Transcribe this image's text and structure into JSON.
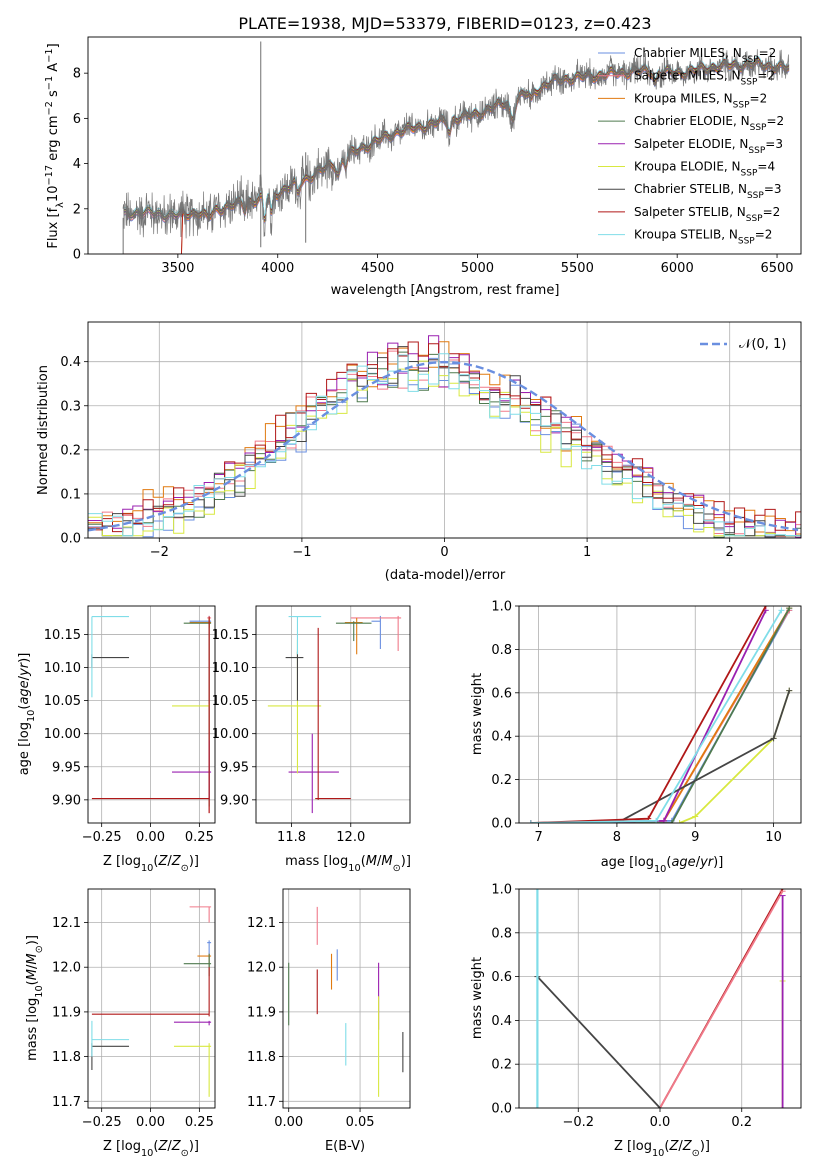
{
  "figure": {
    "title": "PLATE=1938, MJD=53379, FIBERID=0123, z=0.423"
  },
  "colors": {
    "Chabrier MILES": "#6a8fe0",
    "Salpeter MILES": "#f07a8a",
    "Kroupa MILES": "#e07a10",
    "Chabrier ELODIE": "#4f7a4f",
    "Salpeter ELODIE": "#9a20b0",
    "Kroupa ELODIE": "#d8e840",
    "Chabrier STELIB": "#454545",
    "Salpeter STELIB": "#b01818",
    "Kroupa STELIB": "#80dde8",
    "data": "#707070",
    "normal": "#6a8fe0",
    "grid": "#b0b0b0"
  },
  "chart_data": [
    {
      "type": "line",
      "title": "PLATE=1938, MJD=53379, FIBERID=0123, z=0.423",
      "xlabel": "wavelength [Angstrom, rest frame]",
      "ylabel": "Flux [fλ10⁻¹⁷ erg cm⁻² s⁻¹ A⁻¹]",
      "xlim": [
        3050,
        6620
      ],
      "ylim": [
        0,
        9.6
      ],
      "xticks": [
        3500,
        4000,
        4500,
        5000,
        5500,
        6000,
        6500
      ],
      "yticks": [
        0,
        2,
        4,
        6,
        8
      ],
      "grid": false,
      "legend_position": "top-right",
      "legend": [
        {
          "label": "Chabrier MILES, N",
          "sub": "SSP",
          "suffix": "=2"
        },
        {
          "label": "Salpeter MILES, N",
          "sub": "SSP",
          "suffix": "=2"
        },
        {
          "label": "Kroupa MILES, N",
          "sub": "SSP",
          "suffix": "=2"
        },
        {
          "label": "Chabrier ELODIE, N",
          "sub": "SSP",
          "suffix": "=2"
        },
        {
          "label": "Salpeter ELODIE, N",
          "sub": "SSP",
          "suffix": "=3"
        },
        {
          "label": "Kroupa ELODIE, N",
          "sub": "SSP",
          "suffix": "=4"
        },
        {
          "label": "Chabrier STELIB, N",
          "sub": "SSP",
          "suffix": "=3"
        },
        {
          "label": "Salpeter STELIB, N",
          "sub": "SSP",
          "suffix": "=2"
        },
        {
          "label": "Kroupa STELIB, N",
          "sub": "SSP",
          "suffix": "=2"
        }
      ],
      "continuum": {
        "x": [
          3220,
          3300,
          3500,
          3700,
          3900,
          4000,
          4200,
          4400,
          4600,
          4800,
          5000,
          5200,
          5400,
          5600,
          5800,
          6000,
          6200,
          6400,
          6560
        ],
        "y": [
          1.7,
          1.85,
          1.7,
          2.0,
          2.4,
          2.7,
          3.6,
          4.6,
          5.4,
          5.8,
          6.2,
          6.9,
          7.7,
          7.9,
          8.1,
          8.0,
          8.3,
          8.4,
          8.2
        ]
      }
    },
    {
      "type": "histogram",
      "xlabel": "(data-model)/error",
      "ylabel": "Normed distribution",
      "xlim": [
        -2.5,
        2.5
      ],
      "ylim": [
        0,
        0.49
      ],
      "xticks": [
        -2,
        -1,
        0,
        1,
        2
      ],
      "yticks": [
        0.0,
        0.1,
        0.2,
        0.3,
        0.4
      ],
      "grid": true,
      "legend_position": "top-right",
      "reference_curve": "N(0,1)",
      "bin_width": 0.1,
      "bin_start": -2.5,
      "series": [
        {
          "values": [
            0.03,
            0.02,
            0.03,
            0.03,
            0.04,
            0.05,
            0.06,
            0.05,
            0.06,
            0.07,
            0.08,
            0.1,
            0.12,
            0.14,
            0.12,
            0.18,
            0.2,
            0.17,
            0.22,
            0.26,
            0.24,
            0.28,
            0.31,
            0.3,
            0.34,
            0.36,
            0.33,
            0.38,
            0.4,
            0.37,
            0.42,
            0.39,
            0.36,
            0.4,
            0.38,
            0.41,
            0.35,
            0.37,
            0.34,
            0.33,
            0.31,
            0.35,
            0.3,
            0.29,
            0.26,
            0.28,
            0.23,
            0.25,
            0.2,
            0.22,
            0.18,
            0.16,
            0.17,
            0.14,
            0.12,
            0.1,
            0.08,
            0.09,
            0.06,
            0.05,
            0.04,
            0.04,
            0.03,
            0.02,
            0.02,
            0.02,
            0.01,
            0.01,
            0.01,
            0.01
          ]
        },
        {
          "values": [
            0.02,
            0.03,
            0.02,
            0.04,
            0.04,
            0.05,
            0.05,
            0.06,
            0.07,
            0.08,
            0.09,
            0.11,
            0.11,
            0.15,
            0.15,
            0.17,
            0.19,
            0.2,
            0.23,
            0.23,
            0.27,
            0.29,
            0.29,
            0.33,
            0.35,
            0.35,
            0.37,
            0.39,
            0.36,
            0.41,
            0.37,
            0.4,
            0.38,
            0.42,
            0.36,
            0.39,
            0.38,
            0.36,
            0.32,
            0.34,
            0.3,
            0.32,
            0.3,
            0.27,
            0.29,
            0.25,
            0.24,
            0.22,
            0.21,
            0.19,
            0.18,
            0.17,
            0.15,
            0.13,
            0.13,
            0.1,
            0.09,
            0.08,
            0.07,
            0.06,
            0.05,
            0.04,
            0.03,
            0.03,
            0.02,
            0.02,
            0.02,
            0.01,
            0.01,
            0.01
          ]
        },
        {
          "values": [
            0.04,
            0.03,
            0.03,
            0.02,
            0.04,
            0.06,
            0.05,
            0.07,
            0.06,
            0.08,
            0.1,
            0.1,
            0.13,
            0.13,
            0.16,
            0.16,
            0.2,
            0.21,
            0.21,
            0.25,
            0.27,
            0.27,
            0.31,
            0.32,
            0.32,
            0.36,
            0.38,
            0.35,
            0.39,
            0.39,
            0.4,
            0.37,
            0.41,
            0.38,
            0.4,
            0.36,
            0.37,
            0.35,
            0.35,
            0.3,
            0.33,
            0.29,
            0.28,
            0.28,
            0.24,
            0.25,
            0.2,
            0.23,
            0.19,
            0.19,
            0.16,
            0.16,
            0.14,
            0.12,
            0.11,
            0.1,
            0.08,
            0.07,
            0.06,
            0.05,
            0.04,
            0.03,
            0.03,
            0.02,
            0.02,
            0.02,
            0.01,
            0.01,
            0.01,
            0.0
          ]
        }
      ]
    },
    {
      "type": "scatter",
      "xlabel": "Z [log10(Z/Z⊙)]",
      "ylabel": "age  [log10(age/yr)]",
      "xlim": [
        -0.32,
        0.33
      ],
      "ylim": [
        9.865,
        10.193
      ],
      "xticks": [
        -0.25,
        0.0,
        0.25
      ],
      "yticks": [
        9.9,
        9.95,
        10.0,
        10.05,
        10.1,
        10.15
      ],
      "grid": true
    },
    {
      "type": "scatter",
      "xlabel": "mass [log10(M/M⊙)]",
      "ylabel": "",
      "xlim": [
        11.68,
        12.2
      ],
      "ylim": [
        9.865,
        10.193
      ],
      "xticks": [
        11.8,
        12.0
      ],
      "yticks": [
        9.9,
        9.95,
        10.0,
        10.05,
        10.1,
        10.15
      ],
      "grid": true
    },
    {
      "type": "line",
      "xlabel": "age  [log10(age/yr)]",
      "ylabel": "mass weight",
      "xlim": [
        6.75,
        10.35
      ],
      "ylim": [
        0,
        1.0
      ],
      "xticks": [
        7,
        8,
        9,
        10
      ],
      "yticks": [
        0.0,
        0.2,
        0.4,
        0.6,
        0.8,
        1.0
      ],
      "grid": true,
      "series": [
        {
          "x": [
            6.9,
            8.7,
            10.2
          ],
          "y": [
            0.0,
            0.01,
            0.98
          ]
        },
        {
          "x": [
            6.9,
            8.6,
            10.2
          ],
          "y": [
            0.0,
            0.01,
            0.98
          ]
        },
        {
          "x": [
            6.9,
            8.6,
            10.2
          ],
          "y": [
            0.0,
            0.01,
            0.99
          ]
        },
        {
          "x": [
            6.9,
            8.7,
            10.2
          ],
          "y": [
            0.0,
            0.0,
            0.99
          ]
        },
        {
          "x": [
            6.9,
            8.6,
            9.9
          ],
          "y": [
            0.0,
            0.01,
            0.98
          ]
        },
        {
          "x": [
            8.8,
            9.0,
            10.0,
            10.2
          ],
          "y": [
            0.0,
            0.03,
            0.39,
            0.61
          ]
        },
        {
          "x": [
            8.0,
            10.0,
            10.2
          ],
          "y": [
            0.0,
            0.39,
            0.61
          ]
        },
        {
          "x": [
            6.9,
            8.4,
            9.9
          ],
          "y": [
            0.0,
            0.02,
            1.0
          ]
        },
        {
          "x": [
            6.9,
            8.5,
            10.1
          ],
          "y": [
            0.0,
            0.01,
            0.98
          ]
        }
      ]
    },
    {
      "type": "scatter",
      "xlabel": "Z [log10(Z/Z⊙)]",
      "ylabel": "mass [log10(M/M⊙)]",
      "xlim": [
        -0.32,
        0.33
      ],
      "ylim": [
        11.685,
        12.175
      ],
      "xticks": [
        -0.25,
        0.0,
        0.25
      ],
      "yticks": [
        11.7,
        11.8,
        11.9,
        12.0,
        12.1
      ],
      "grid": true
    },
    {
      "type": "scatter",
      "xlabel": "E(B-V)",
      "ylabel": "",
      "xlim": [
        -0.004,
        0.085
      ],
      "ylim": [
        11.685,
        12.175
      ],
      "xticks": [
        0.0,
        0.05
      ],
      "yticks": [
        11.7,
        11.8,
        11.9,
        12.0,
        12.1
      ],
      "grid": true
    },
    {
      "type": "line",
      "xlabel": "Z [log10(Z/Z⊙)]",
      "ylabel": "mass weight",
      "xlim": [
        -0.345,
        0.345
      ],
      "ylim": [
        0,
        1.0
      ],
      "xticks": [
        -0.2,
        0.0,
        0.2
      ],
      "yticks": [
        0.0,
        0.2,
        0.4,
        0.6,
        0.8,
        1.0
      ],
      "grid": true,
      "series": [
        {
          "x": [
            0.0,
            0.3
          ],
          "y": [
            0.0,
            1.0
          ]
        },
        {
          "x": [
            0.0,
            0.3
          ],
          "y": [
            0.0,
            0.99
          ]
        },
        {
          "x": [
            -0.3,
            0.0
          ],
          "y": [
            0.6,
            0.0
          ]
        },
        {
          "x": [
            -0.3,
            -0.3
          ],
          "y": [
            0.0,
            1.0
          ]
        },
        {
          "x": [
            0.3,
            0.3
          ],
          "y": [
            0.0,
            0.58
          ]
        },
        {
          "x": [
            0.3,
            0.3
          ],
          "y": [
            0.0,
            0.97
          ]
        }
      ]
    }
  ]
}
